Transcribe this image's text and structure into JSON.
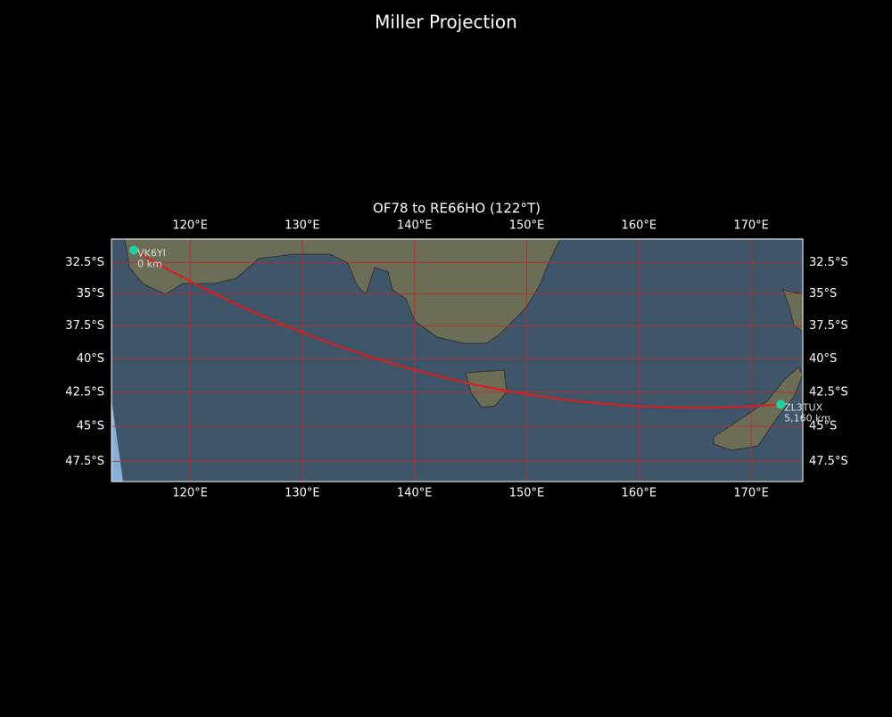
{
  "title": "Miller Projection",
  "map": {
    "title": "OF78 to RE66HO (122°T)",
    "projection": "miller",
    "xlim": [
      113,
      174.6
    ],
    "ylim": [
      -30.6,
      -48.9
    ],
    "xticks": [
      {
        "value": 120,
        "label": "120°E"
      },
      {
        "value": 130,
        "label": "130°E"
      },
      {
        "value": 140,
        "label": "140°E"
      },
      {
        "value": 150,
        "label": "150°E"
      },
      {
        "value": 160,
        "label": "160°E"
      },
      {
        "value": 170,
        "label": "170°E"
      }
    ],
    "yticks": [
      {
        "value": -32.5,
        "label": "32.5°S"
      },
      {
        "value": -35,
        "label": "35°S"
      },
      {
        "value": -37.5,
        "label": "37.5°S"
      },
      {
        "value": -40,
        "label": "40°S"
      },
      {
        "value": -42.5,
        "label": "42.5°S"
      },
      {
        "value": -45,
        "label": "45°S"
      },
      {
        "value": -47.5,
        "label": "47.5°S"
      }
    ],
    "grid": true,
    "grid_color": "#c62828",
    "route_color": "#e31a1c",
    "marker_color": "#1fd1a0",
    "stations": [
      {
        "name": "VK6YI",
        "lon": 115,
        "lat": -31.5,
        "label": "0 km"
      },
      {
        "name": "ZL3TUX",
        "lon": 172.625,
        "lat": -43.396,
        "label": "5,160 km"
      }
    ]
  }
}
